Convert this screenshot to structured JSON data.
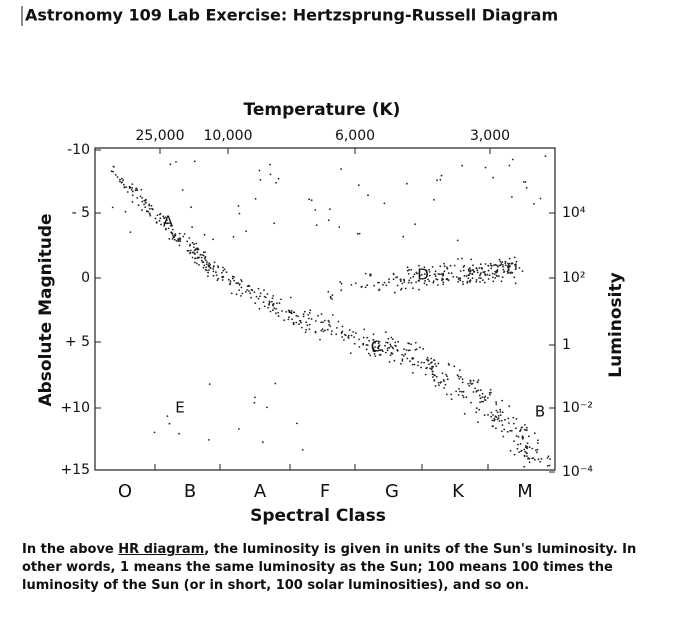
{
  "header": {
    "title": "Astronomy 109 Lab Exercise: Hertzsprung-Russell Diagram"
  },
  "figure": {
    "top_axis_title": "Temperature (K)",
    "top_ticks": [
      "25,000",
      "10,000",
      "6,000",
      "3,000"
    ],
    "left_axis_title": "Absolute Magnitude",
    "left_ticks": [
      "-10",
      "- 5",
      "0",
      "+ 5",
      "+10",
      "+15"
    ],
    "right_axis_title": "Luminosity",
    "right_ticks": [
      "10⁴",
      "10²",
      "1",
      "10⁻²",
      "10⁻⁴"
    ],
    "bottom_axis_title": "Spectral Class",
    "bottom_ticks": [
      "O",
      "B",
      "A",
      "F",
      "G",
      "K",
      "M"
    ],
    "labels": [
      "A",
      "B",
      "C",
      "D",
      "E"
    ]
  },
  "caption": {
    "before": "In the above ",
    "link": "HR diagram",
    "after": ", the luminosity is given in units of the Sun's luminosity. In other words, 1 means the same luminosity as the Sun; 100 means 100 times the luminosity of the Sun (or in short, 100 solar luminosities), and so on."
  }
}
